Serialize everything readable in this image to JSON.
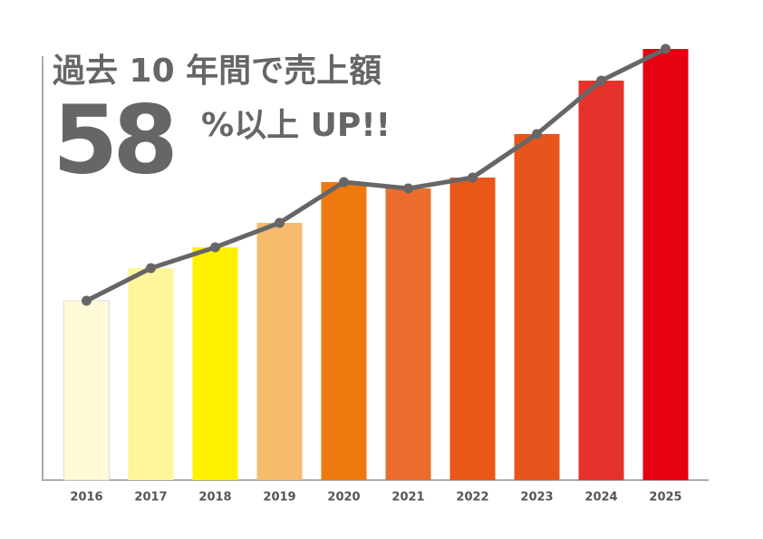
{
  "chart_data": {
    "type": "bar",
    "title": "過去 10 年間で売上額",
    "headline_number": "58",
    "headline_text": "%以上 UP!!",
    "categories": [
      "2016",
      "2017",
      "2018",
      "2019",
      "2020",
      "2021",
      "2022",
      "2023",
      "2024",
      "2025"
    ],
    "values": [
      198,
      234,
      257,
      284,
      329,
      322,
      334,
      382,
      441,
      476
    ],
    "colors": [
      "#fffbd6",
      "#fff59a",
      "#fff100",
      "#f7bb6e",
      "#ee7a0f",
      "#ec6c2e",
      "#ea5718",
      "#e8551c",
      "#e5322b",
      "#e50012"
    ],
    "line_color": "#666666",
    "ylim": [
      0,
      500
    ]
  }
}
